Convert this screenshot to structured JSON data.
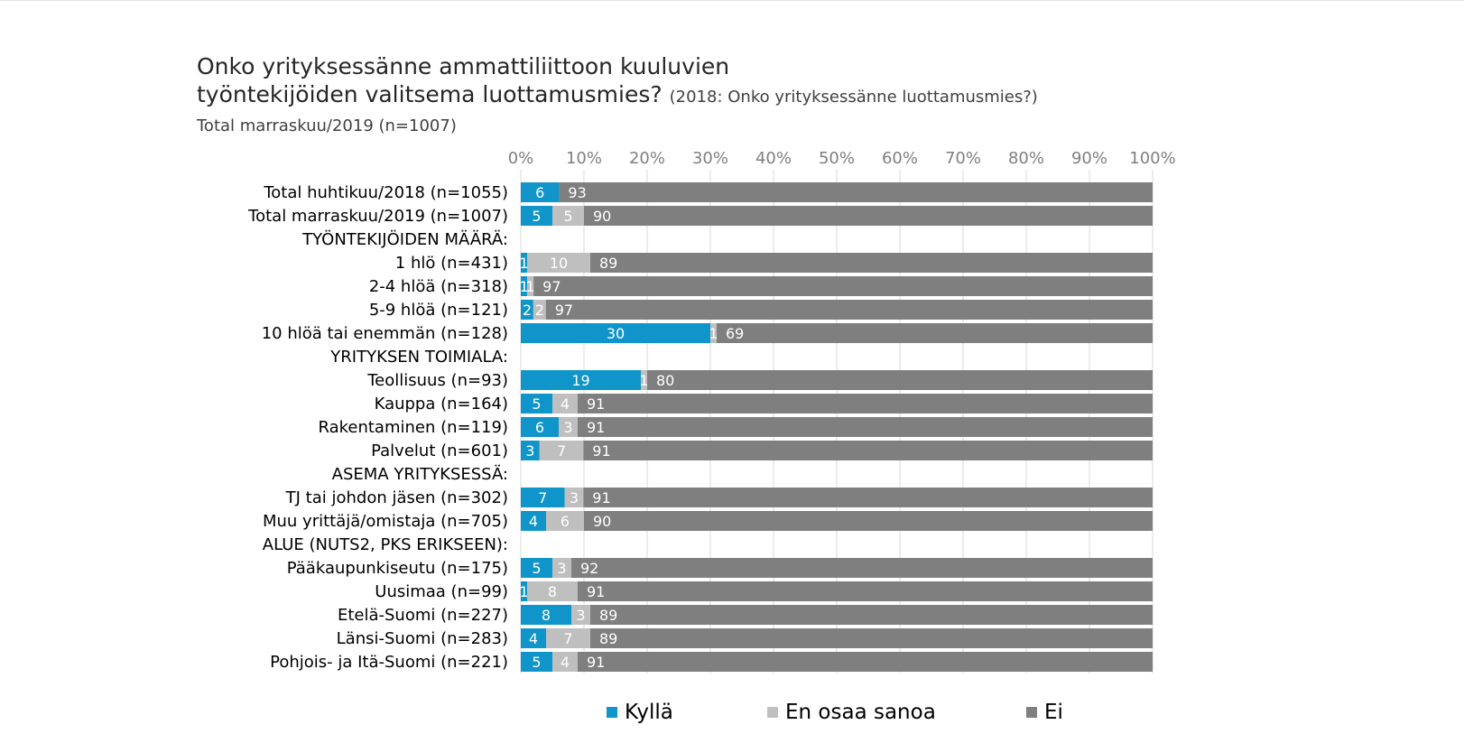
{
  "title": {
    "line1": "Onko yrityksessänne ammattiliittoon kuuluvien",
    "line2": "työntekijöiden valitsema luottamusmies?",
    "note": "(2018: Onko yrityksessänne luottamusmies?)"
  },
  "subtitle": "Total marraskuu/2019 (n=1007)",
  "chart_data": {
    "type": "bar",
    "orientation": "horizontal",
    "stacked": "percent",
    "xlim": [
      0,
      100
    ],
    "ticks": [
      "0%",
      "10%",
      "20%",
      "30%",
      "40%",
      "50%",
      "60%",
      "70%",
      "80%",
      "90%",
      "100%"
    ],
    "colors": {
      "Kyllä": "#0f95c9",
      "En osaa sanoa": "#bfbfbf",
      "Ei": "#7f7f7f"
    },
    "legend_position": "bottom",
    "series": [
      {
        "name": "Kyllä",
        "color": "#0f95c9"
      },
      {
        "name": "En osaa sanoa",
        "color": "#bfbfbf"
      },
      {
        "name": "Ei",
        "color": "#7f7f7f"
      }
    ],
    "categories": [
      "Total huhtikuu/2018 (n=1055)",
      "Total marraskuu/2019 (n=1007)",
      "TYÖNTEKIJÖIDEN MÄÄRÄ:",
      "1 hlö (n=431)",
      "2-4 hlöä (n=318)",
      "5-9 hlöä (n=121)",
      "10 hlöä tai enemmän (n=128)",
      "YRITYKSEN TOIMIALA:",
      "Teollisuus (n=93)",
      "Kauppa (n=164)",
      "Rakentaminen (n=119)",
      "Palvelut (n=601)",
      "ASEMA YRITYKSESSÄ:",
      "TJ tai johdon jäsen (n=302)",
      "Muu yrittäjä/omistaja (n=705)",
      "ALUE (NUTS2, PKS ERIKSEEN):",
      "Pääkaupunkiseutu (n=175)",
      "Uusimaa (n=99)",
      "Etelä-Suomi (n=227)",
      "Länsi-Suomi (n=283)",
      "Pohjois- ja Itä-Suomi (n=221)"
    ],
    "rows": [
      {
        "label": "Total huhtikuu/2018 (n=1055)",
        "values": [
          6,
          0,
          93
        ]
      },
      {
        "label": "Total marraskuu/2019 (n=1007)",
        "values": [
          5,
          5,
          90
        ]
      },
      {
        "label": "TYÖNTEKIJÖIDEN MÄÄRÄ:",
        "header": true
      },
      {
        "label": "1 hlö (n=431)",
        "values": [
          1,
          10,
          89
        ]
      },
      {
        "label": "2-4 hlöä (n=318)",
        "values": [
          1,
          1,
          97
        ]
      },
      {
        "label": "5-9 hlöä (n=121)",
        "values": [
          2,
          2,
          97
        ]
      },
      {
        "label": "10 hlöä tai enemmän (n=128)",
        "values": [
          30,
          1,
          69
        ]
      },
      {
        "label": "YRITYKSEN TOIMIALA:",
        "header": true
      },
      {
        "label": "Teollisuus (n=93)",
        "values": [
          19,
          1,
          80
        ]
      },
      {
        "label": "Kauppa (n=164)",
        "values": [
          5,
          4,
          91
        ]
      },
      {
        "label": "Rakentaminen (n=119)",
        "values": [
          6,
          3,
          91
        ]
      },
      {
        "label": "Palvelut (n=601)",
        "values": [
          3,
          7,
          91
        ]
      },
      {
        "label": "ASEMA YRITYKSESSÄ:",
        "header": true
      },
      {
        "label": "TJ tai johdon jäsen (n=302)",
        "values": [
          7,
          3,
          91
        ]
      },
      {
        "label": "Muu yrittäjä/omistaja (n=705)",
        "values": [
          4,
          6,
          90
        ]
      },
      {
        "label": "ALUE (NUTS2, PKS ERIKSEEN):",
        "header": true
      },
      {
        "label": "Pääkaupunkiseutu (n=175)",
        "values": [
          5,
          3,
          92
        ]
      },
      {
        "label": "Uusimaa (n=99)",
        "values": [
          1,
          8,
          91
        ]
      },
      {
        "label": "Etelä-Suomi (n=227)",
        "values": [
          8,
          3,
          89
        ]
      },
      {
        "label": "Länsi-Suomi (n=283)",
        "values": [
          4,
          7,
          89
        ]
      },
      {
        "label": "Pohjois- ja Itä-Suomi (n=221)",
        "values": [
          5,
          4,
          91
        ]
      }
    ]
  },
  "legend": [
    {
      "label": "Kyllä",
      "color": "#0f95c9"
    },
    {
      "label": "En osaa sanoa",
      "color": "#bfbfbf"
    },
    {
      "label": "Ei",
      "color": "#7f7f7f"
    }
  ]
}
